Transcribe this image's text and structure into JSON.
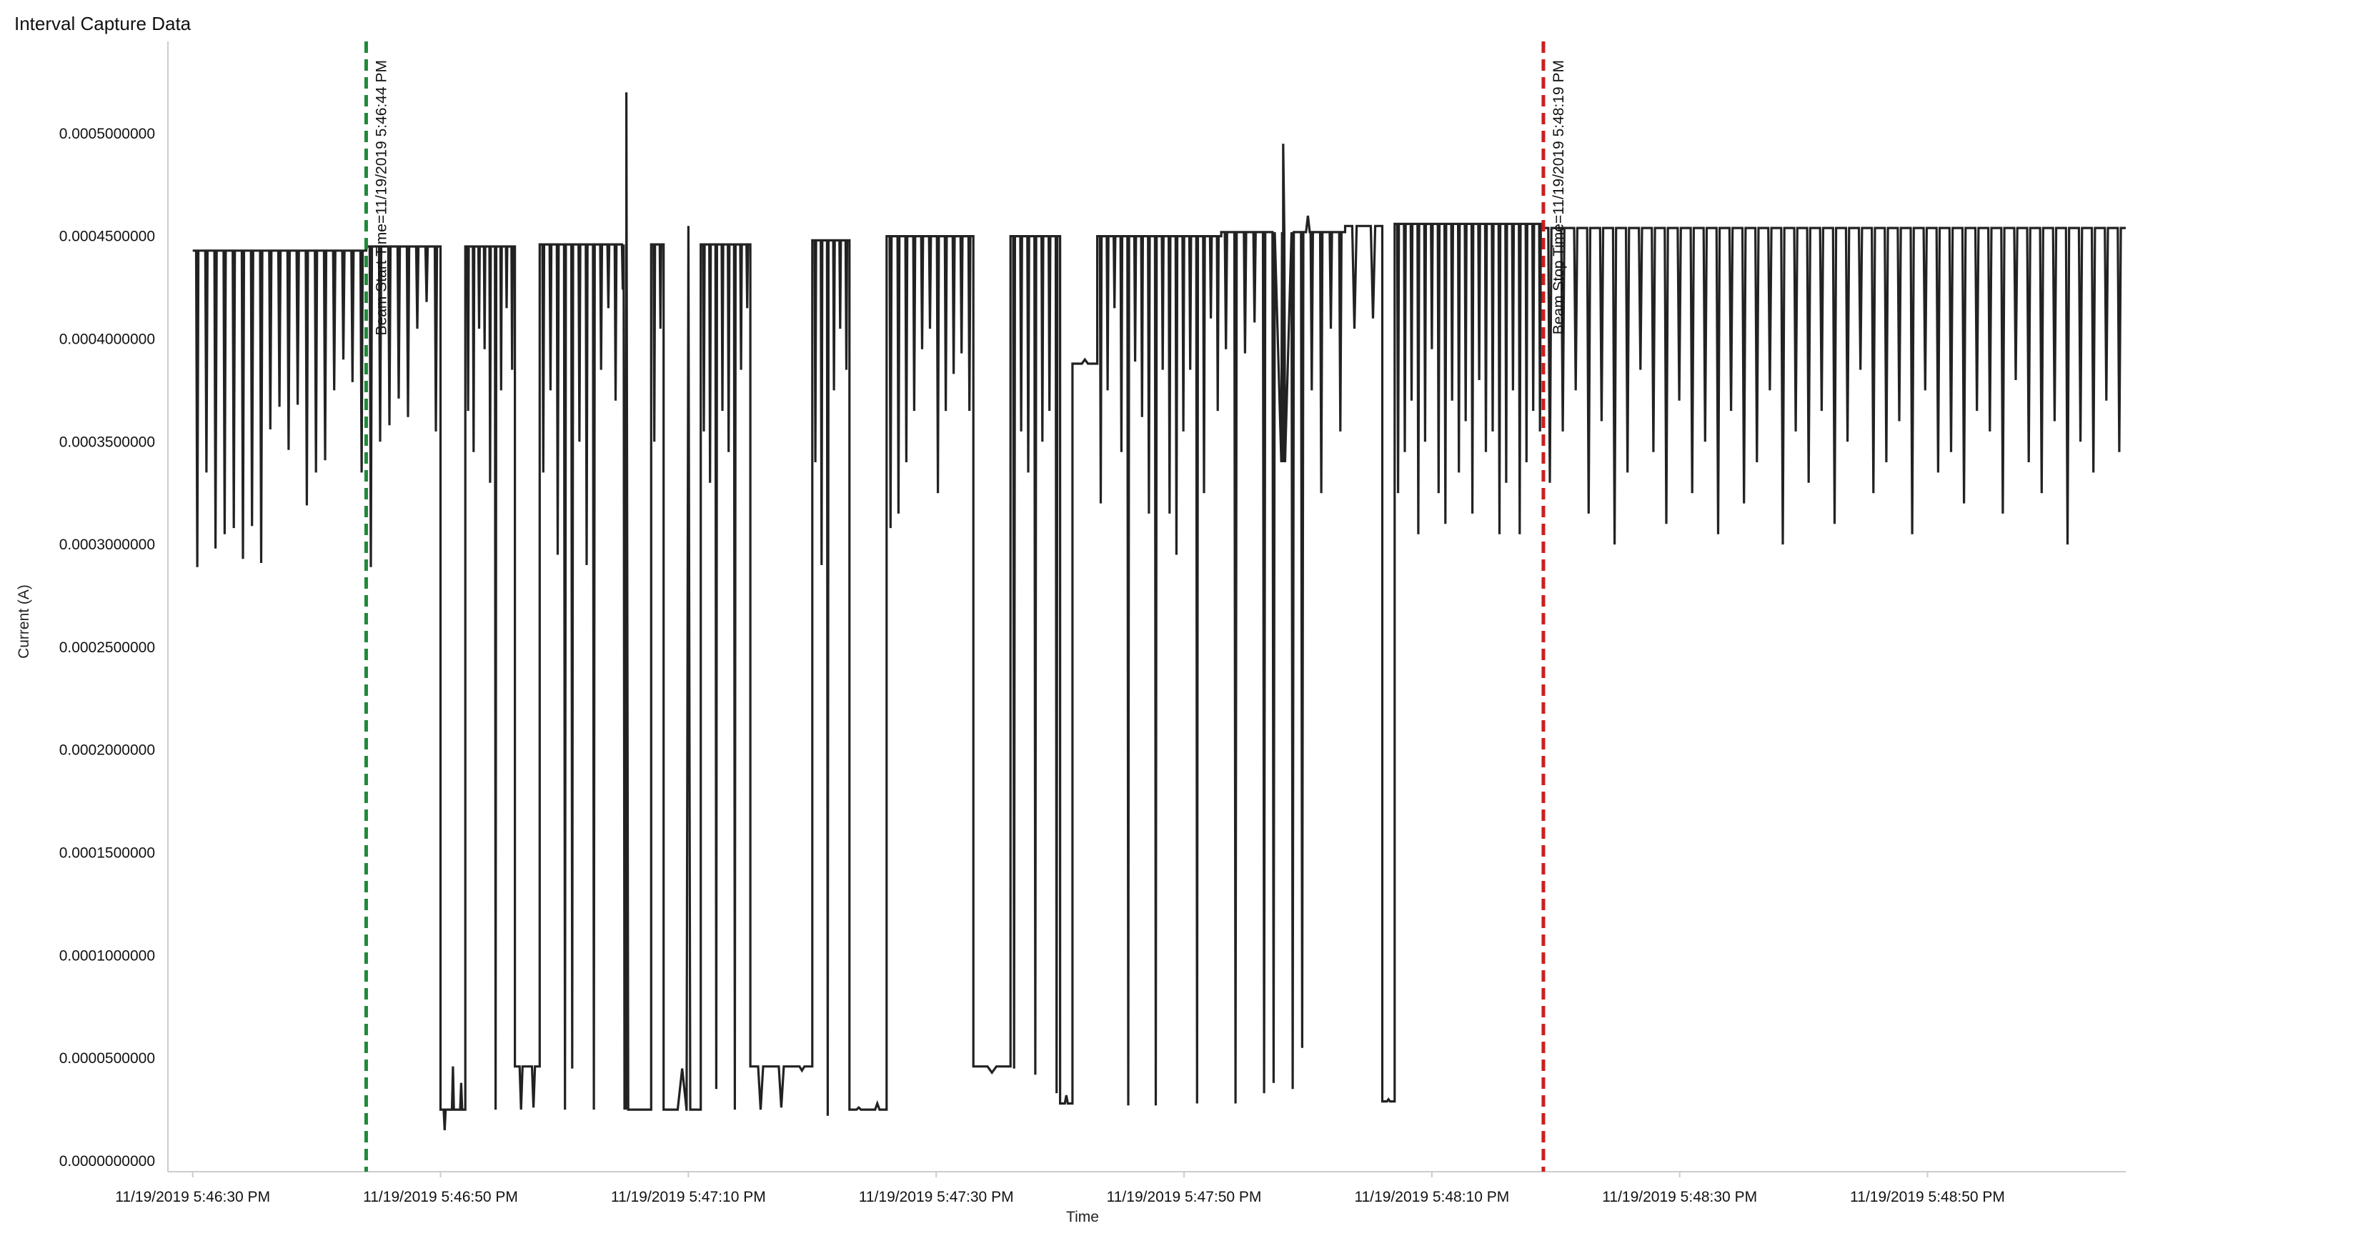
{
  "title": "Interval Capture Data",
  "chart_data": {
    "type": "line",
    "title": "Interval Capture Data",
    "xlabel": "Time",
    "ylabel": "Current (A)",
    "xlim": [
      "11/19/2019 5:46:28 PM",
      "11/19/2019 5:49:06 PM"
    ],
    "ylim": [
      0,
      0.00055
    ],
    "grid": false,
    "legend": "none",
    "line_color": "#222222",
    "x_ticks": [
      "11/19/2019 5:46:30 PM",
      "11/19/2019 5:46:50 PM",
      "11/19/2019 5:47:10 PM",
      "11/19/2019 5:47:30 PM",
      "11/19/2019 5:47:50 PM",
      "11/19/2019 5:48:10 PM",
      "11/19/2019 5:48:30 PM",
      "11/19/2019 5:48:50 PM"
    ],
    "y_ticks": [
      "0.0000000000",
      "0.0000500000",
      "0.0001000000",
      "0.0001500000",
      "0.0002000000",
      "0.0002500000",
      "0.0003000000",
      "0.0003500000",
      "0.0004000000",
      "0.0004500000",
      "0.0005000000"
    ],
    "y_tick_values": [
      0,
      5e-05,
      0.0001,
      0.00015,
      0.0002,
      0.00025,
      0.0003,
      0.00035,
      0.0004,
      0.00045,
      0.0005
    ],
    "markers": [
      {
        "label": "Beam Start Time=11/19/2019 5:46:44 PM",
        "x": "11/19/2019 5:46:44 PM",
        "color": "#1f8a3a"
      },
      {
        "label": "Beam Stop Time=11/19/2019 5:48:19 PM",
        "x": "11/19/2019 5:48:19 PM",
        "color": "#cc1f1f"
      }
    ],
    "series": [
      {
        "name": "",
        "segments": [
          {
            "start": "11/19/2019 5:46:30 PM",
            "end": "11/19/2019 5:46:44 PM",
            "base": 0.000443,
            "drops": [
              0.000289,
              0.000335,
              0.000298,
              0.000305,
              0.000308,
              0.000293,
              0.000309,
              0.000291,
              0.000356,
              0.000367,
              0.000346,
              0.000368,
              0.000319,
              0.000335,
              0.000341,
              0.000375,
              0.00039,
              0.000379,
              0.000335
            ]
          },
          {
            "start": "11/19/2019 5:46:44 PM",
            "end": "11/19/2019 5:46:50 PM",
            "base": 0.000445,
            "drops": [
              0.000289,
              0.00035,
              0.000358,
              0.000371,
              0.000362,
              0.000405,
              0.000418,
              0.000355
            ]
          },
          {
            "start": "11/19/2019 5:46:50 PM",
            "end": "11/19/2019 5:46:52 PM",
            "base": 2.5e-05,
            "drops": [
              1.5e-05,
              4.6e-05,
              3.8e-05
            ]
          },
          {
            "start": "11/19/2019 5:46:52 PM",
            "end": "11/19/2019 5:46:56 PM",
            "base": 0.000445,
            "drops": [
              0.000365,
              0.000345,
              0.000405,
              0.000395,
              0.00033,
              2.5e-05,
              0.000375,
              0.000415,
              0.000385
            ]
          },
          {
            "start": "11/19/2019 5:46:56 PM",
            "end": "11/19/2019 5:46:58 PM",
            "base": 4.6e-05,
            "drops": [
              2.5e-05,
              2.6e-05
            ]
          },
          {
            "start": "11/19/2019 5:46:58 PM",
            "end": "11/19/2019 5:47:05 PM",
            "base": 0.000446,
            "drops": [
              0.000335,
              0.000375,
              0.000295,
              2.5e-05,
              4.5e-05,
              0.00035,
              0.00029,
              2.5e-05,
              0.000385,
              0.000415,
              0.00037,
              0.000424
            ]
          },
          {
            "start": "11/19/2019 5:47:05 PM",
            "end": "11/19/2019 5:47:07 PM",
            "base": 2.5e-05,
            "drops": [
              2.5e-05
            ]
          },
          {
            "start": "11/19/2019 5:47:07 PM",
            "end": "11/19/2019 5:47:08 PM",
            "base": 0.000446,
            "drops": [
              0.00035,
              0.000405
            ]
          },
          {
            "start": "11/19/2019 5:47:08 PM",
            "end": "11/19/2019 5:47:11 PM",
            "base": 2.5e-05,
            "drops": [
              4.5e-05
            ]
          },
          {
            "start": "11/19/2019 5:47:11 PM",
            "end": "11/19/2019 5:47:15 PM",
            "base": 0.000446,
            "drops": [
              0.000355,
              0.00033,
              3.5e-05,
              0.000365,
              0.000345,
              2.5e-05,
              0.000385,
              0.000415
            ]
          },
          {
            "start": "11/19/2019 5:47:15 PM",
            "end": "11/19/2019 5:47:20 PM",
            "base": 4.6e-05,
            "drops": [
              2.5e-05,
              2.6e-05,
              4.4e-05
            ]
          },
          {
            "start": "11/19/2019 5:47:20 PM",
            "end": "11/19/2019 5:47:23 PM",
            "base": 0.000448,
            "drops": [
              0.00034,
              0.00029,
              2.2e-05,
              0.000375,
              0.000405,
              0.000385
            ]
          },
          {
            "start": "11/19/2019 5:47:23 PM",
            "end": "11/19/2019 5:47:26 PM",
            "base": 2.5e-05,
            "drops": [
              2.6e-05,
              2.8e-05
            ]
          },
          {
            "start": "11/19/2019 5:47:26 PM",
            "end": "11/19/2019 5:47:33 PM",
            "base": 0.00045,
            "drops": [
              0.000308,
              0.000315,
              0.00034,
              0.000365,
              0.000395,
              0.000405,
              0.000325,
              0.000365,
              0.000383,
              0.000393,
              0.000365
            ]
          },
          {
            "start": "11/19/2019 5:47:33 PM",
            "end": "11/19/2019 5:47:36 PM",
            "base": 4.6e-05,
            "drops": [
              4.3e-05
            ]
          },
          {
            "start": "11/19/2019 5:47:36 PM",
            "end": "11/19/2019 5:47:40 PM",
            "base": 0.00045,
            "drops": [
              4.5e-05,
              0.000355,
              0.000335,
              4.2e-05,
              0.00035,
              0.000365,
              3.3e-05
            ]
          },
          {
            "start": "11/19/2019 5:47:40 PM",
            "end": "11/19/2019 5:47:41 PM",
            "base": 2.8e-05,
            "drops": [
              3.2e-05
            ]
          },
          {
            "start": "11/19/2019 5:47:41 PM",
            "end": "11/19/2019 5:47:43 PM",
            "base": 0.000388,
            "drops": [
              0.00039
            ]
          },
          {
            "start": "11/19/2019 5:47:43 PM",
            "end": "11/19/2019 5:47:53 PM",
            "base": 0.00045,
            "drops": [
              0.00032,
              0.000375,
              0.000415,
              0.000345,
              2.7e-05,
              0.000389,
              0.000362,
              0.000315,
              2.7e-05,
              0.000385,
              0.000315,
              0.000295,
              0.000355,
              0.000385,
              2.8e-05,
              0.000325,
              0.00041,
              0.000365
            ]
          },
          {
            "start": "11/19/2019 5:47:53 PM",
            "end": "11/19/2019 5:48:03 PM",
            "base": 0.000452,
            "drops": [
              0.000395,
              2.8e-05,
              0.000393,
              0.000408,
              3.3e-05,
              3.8e-05,
              0.00034,
              3.5e-05,
              5.5e-05,
              0.000375,
              0.000325,
              0.000405,
              0.000355
            ]
          },
          {
            "start": "11/19/2019 5:48:03 PM",
            "end": "11/19/2019 5:48:06 PM",
            "base": 0.000455,
            "drops": [
              0.000405,
              0.00041
            ]
          },
          {
            "start": "11/19/2019 5:48:06 PM",
            "end": "11/19/2019 5:48:07 PM",
            "base": 2.9e-05,
            "drops": [
              3e-05
            ]
          },
          {
            "start": "11/19/2019 5:48:07 PM",
            "end": "11/19/2019 5:48:19 PM",
            "base": 0.000456,
            "drops": [
              0.000325,
              0.000345,
              0.00037,
              0.000305,
              0.00035,
              0.000395,
              0.000325,
              0.00031,
              0.00037,
              0.000335,
              0.00036,
              0.000315,
              0.00038,
              0.000345,
              0.000355,
              0.000305,
              0.00033,
              0.000375,
              0.000305,
              0.00034,
              0.000365,
              0.000355
            ]
          },
          {
            "start": "11/19/2019 5:48:19 PM",
            "end": "11/19/2019 5:49:06 PM",
            "base": 0.000454,
            "drops": [
              0.00033,
              0.000355,
              0.000375,
              0.000315,
              0.00036,
              0.0003,
              0.000335,
              0.000385,
              0.000345,
              0.00031,
              0.00037,
              0.000325,
              0.00035,
              0.000305,
              0.000365,
              0.00032,
              0.00034,
              0.000375,
              0.0003,
              0.000355,
              0.00033,
              0.000365,
              0.00031,
              0.00035,
              0.000385,
              0.000325,
              0.00034,
              0.00036,
              0.000305,
              0.000375,
              0.000335,
              0.000345,
              0.00032,
              0.000365,
              0.000355,
              0.000315,
              0.00038,
              0.00034,
              0.000325,
              0.00036,
              0.0003,
              0.00035,
              0.000335,
              0.00037,
              0.000345
            ]
          }
        ],
        "spikes": [
          {
            "x": "11/19/2019 5:47:05 PM",
            "y": 0.00052
          },
          {
            "x": "11/19/2019 5:47:10 PM",
            "y": 0.000455
          },
          {
            "x": "11/19/2019 5:47:58 PM",
            "y": 0.000495
          },
          {
            "x": "11/19/2019 5:48:00 PM",
            "y": 0.00046
          }
        ]
      }
    ]
  }
}
